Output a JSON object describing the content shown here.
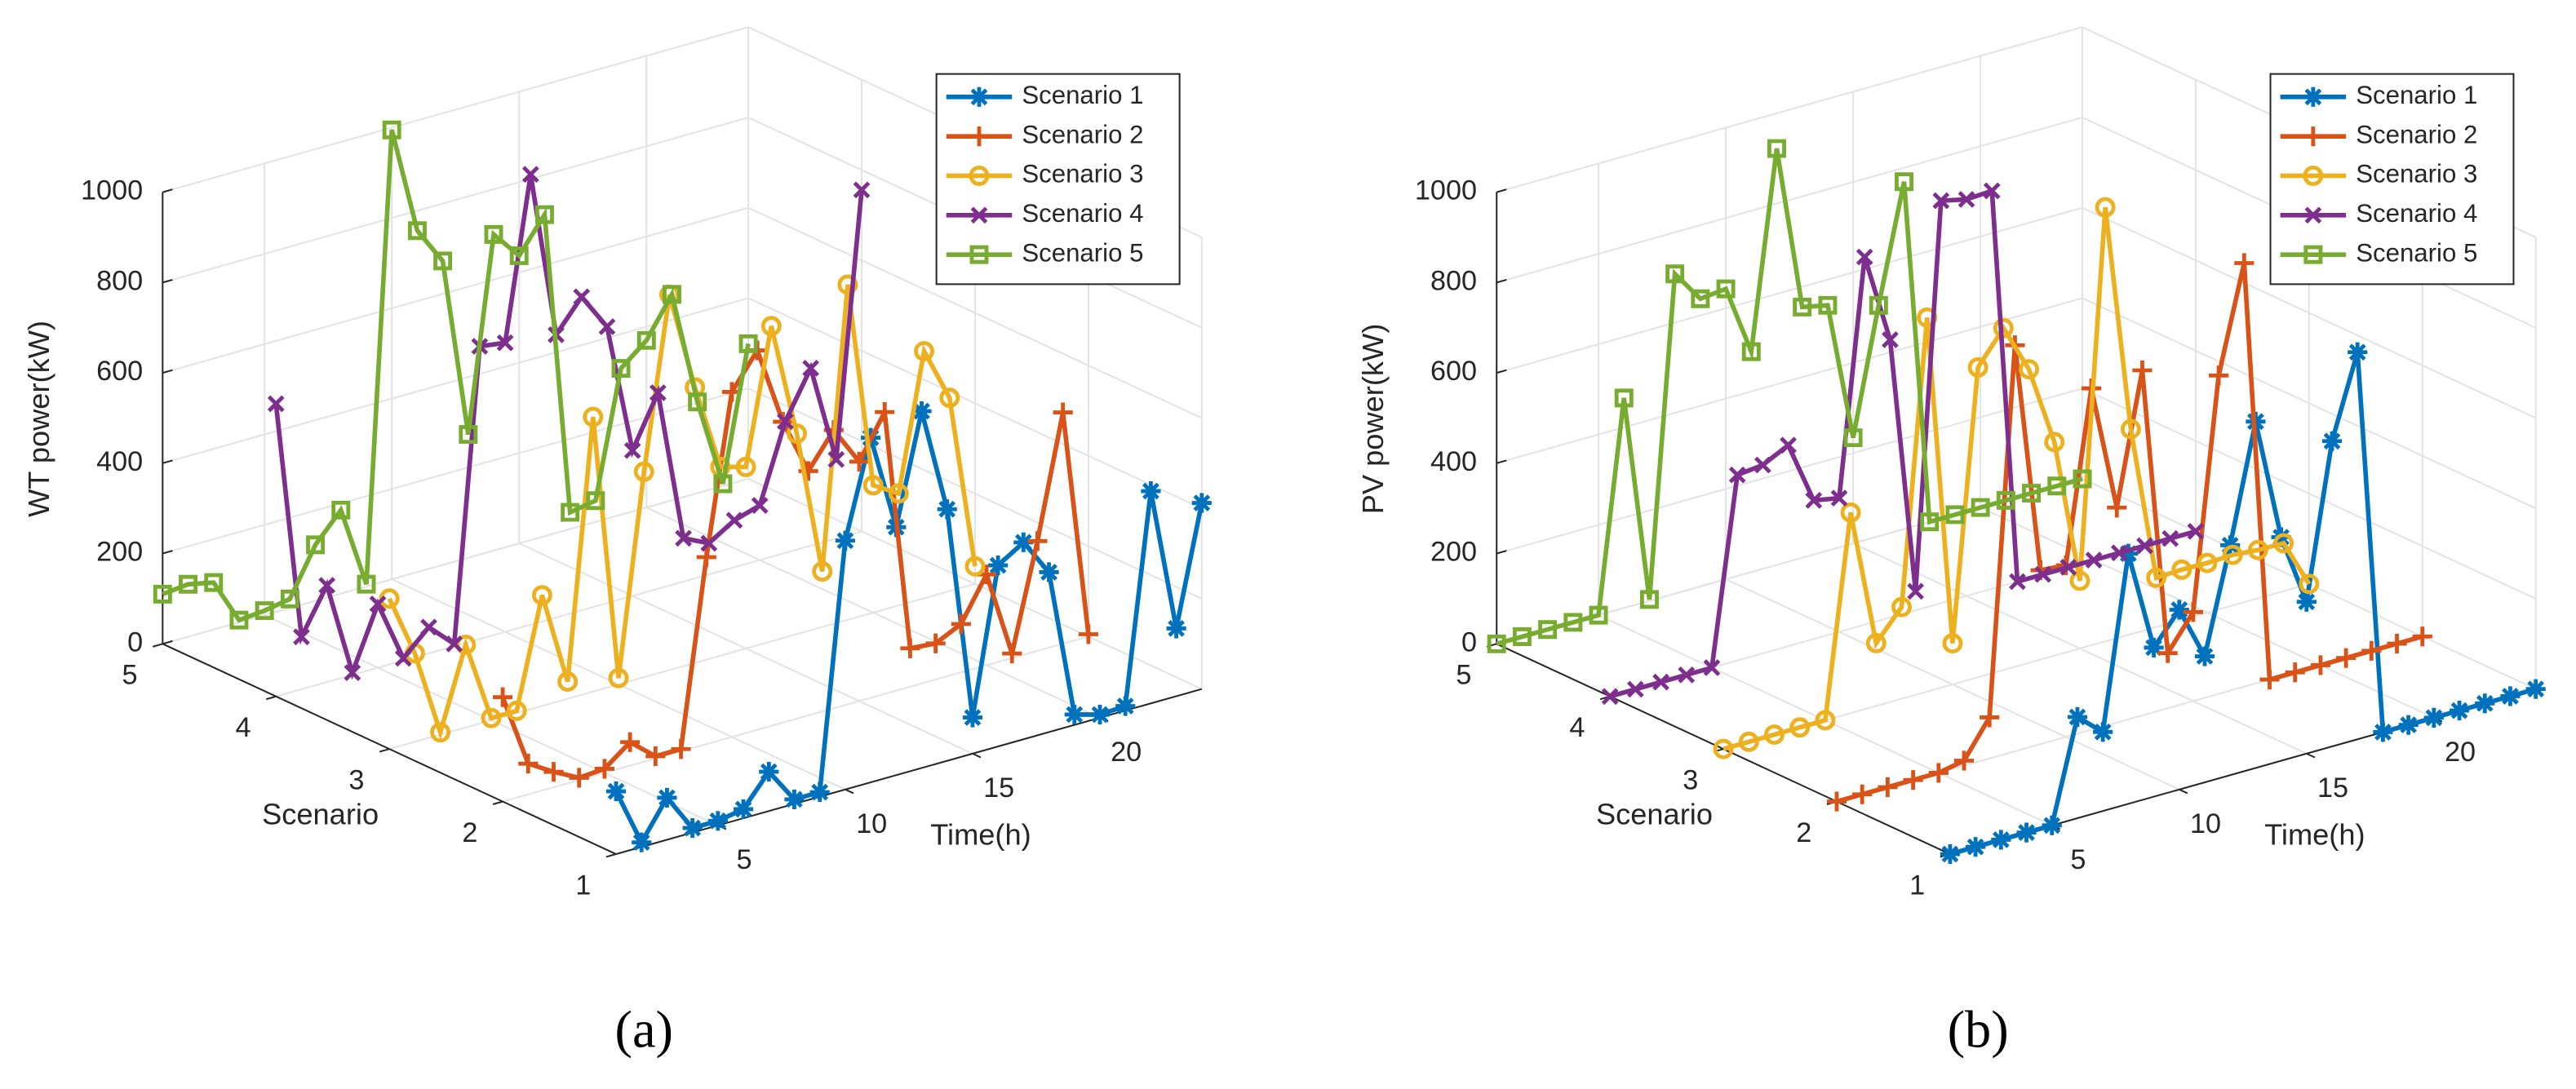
{
  "chart_data": [
    {
      "type": "line3d",
      "label": "(a)",
      "xlabel": "Time(h)",
      "ylabel": "Scenario",
      "zlabel": "WT power(kW)",
      "x": [
        1,
        2,
        3,
        4,
        5,
        6,
        7,
        8,
        9,
        10,
        11,
        12,
        13,
        14,
        15,
        16,
        17,
        18,
        19,
        20,
        21,
        22,
        23,
        24
      ],
      "xlim": [
        1,
        24
      ],
      "xticks": [
        5,
        10,
        15,
        20
      ],
      "ylim": [
        1,
        5
      ],
      "yticks": [
        1,
        2,
        3,
        4,
        5
      ],
      "zlim": [
        0,
        1000
      ],
      "zticks": [
        0,
        200,
        400,
        600,
        800,
        1000
      ],
      "grid": true,
      "legend": "upper right",
      "series": [
        {
          "name": "Scenario 1",
          "color": "#0072BD",
          "marker": "asterisk",
          "y": 1,
          "values": [
            139,
            10,
            93,
            10,
            10,
            20,
            87,
            10,
            10,
            551,
            763,
            549,
            790,
            557,
            80,
            401,
            436,
            354,
            23,
            7,
            10,
            470,
            150,
            412
          ]
        },
        {
          "name": "Scenario 2",
          "color": "#D95319",
          "marker": "plus",
          "y": 2,
          "values": [
            231,
            68,
            34,
            5,
            9,
            52,
            5,
            5,
            414,
            764,
            840,
            666,
            541,
            616,
            530,
            624,
            85,
            80,
            107,
            201,
            10,
            243,
            512,
            5
          ]
        },
        {
          "name": "Scenario 3",
          "color": "#EDB120",
          "marker": "circle",
          "y": 3,
          "values": [
            333,
            196,
            5,
            183,
            5,
            5,
            245,
            38,
            608,
            14,
            455,
            831,
            610,
            418,
            402,
            698,
            444,
            123,
            742,
            282,
            248,
            547,
            428,
            39
          ]
        },
        {
          "name": "Scenario 4",
          "color": "#7E2F8E",
          "marker": "cross",
          "y": 4,
          "values": [
            648,
            116,
            214,
            5,
            141,
            5,
            58,
            5,
            648,
            640,
            997,
            626,
            694,
            612,
            322,
            434,
            96,
            69,
            104,
            121,
            291,
            393,
            175,
            756
          ]
        },
        {
          "name": "Scenario 5",
          "color": "#77AC30",
          "marker": "square",
          "y": 5,
          "values": [
            110,
            116,
            104,
            5,
            10,
            20,
            124,
            185,
            5,
            995,
            756,
            673,
            273,
            700,
            637,
            712,
            37,
            47,
            324,
            370,
            456,
            202,
            5,
            299
          ]
        }
      ]
    },
    {
      "type": "line3d",
      "label": "(b)",
      "xlabel": "Time(h)",
      "ylabel": "Scenario",
      "zlabel": "PV power(kW)",
      "x": [
        1,
        2,
        3,
        4,
        5,
        6,
        7,
        8,
        9,
        10,
        11,
        12,
        13,
        14,
        15,
        16,
        17,
        18,
        19,
        20,
        21,
        22,
        23,
        24
      ],
      "xlim": [
        1,
        24
      ],
      "xticks": [
        5,
        10,
        15,
        20
      ],
      "ylim": [
        1,
        5
      ],
      "yticks": [
        1,
        2,
        3,
        4,
        5
      ],
      "zlim": [
        0,
        1000
      ],
      "zticks": [
        0,
        200,
        400,
        600,
        800,
        1000
      ],
      "grid": true,
      "legend": "upper right",
      "series": [
        {
          "name": "Scenario 1",
          "color": "#0072BD",
          "marker": "asterisk",
          "y": 1,
          "values": [
            0,
            0,
            0,
            0,
            0,
            224,
            175,
            554,
            330,
            398,
            279,
            509,
            767,
            495,
            336,
            676,
            857,
            0,
            0,
            0,
            0,
            0,
            0,
            0
          ]
        },
        {
          "name": "Scenario 2",
          "color": "#D95319",
          "marker": "plus",
          "y": 2,
          "values": [
            0,
            0,
            0,
            0,
            0,
            11,
            91,
            899,
            385,
            380,
            756,
            476,
            764,
            122,
            197,
            705,
            938,
            0,
            0,
            0,
            0,
            0,
            0,
            0
          ]
        },
        {
          "name": "Scenario 3",
          "color": "#EDB120",
          "marker": "circle",
          "y": 3,
          "values": [
            0,
            0,
            0,
            0,
            0,
            444,
            139,
            203,
            828,
            91,
            686,
            757,
            650,
            473,
            150,
            961,
            454,
            109,
            111,
            110,
            112,
            107,
            106,
            0
          ]
        },
        {
          "name": "Scenario 4",
          "color": "#7E2F8E",
          "marker": "cross",
          "y": 4,
          "values": [
            0,
            0,
            0,
            0,
            0,
            411,
            417,
            445,
            307,
            296,
            814,
            615,
            42,
            891,
            878,
            881,
            0,
            0,
            0,
            0,
            0,
            0,
            0,
            0
          ]
        },
        {
          "name": "Scenario 5",
          "color": "#77AC30",
          "marker": "square",
          "y": 5,
          "values": [
            0,
            0,
            0,
            0,
            0,
            465,
            3,
            708,
            637,
            643,
            488,
            922,
            555,
            543,
            234,
            511,
            769,
            0,
            0,
            0,
            0,
            0,
            0,
            0
          ]
        }
      ]
    }
  ]
}
